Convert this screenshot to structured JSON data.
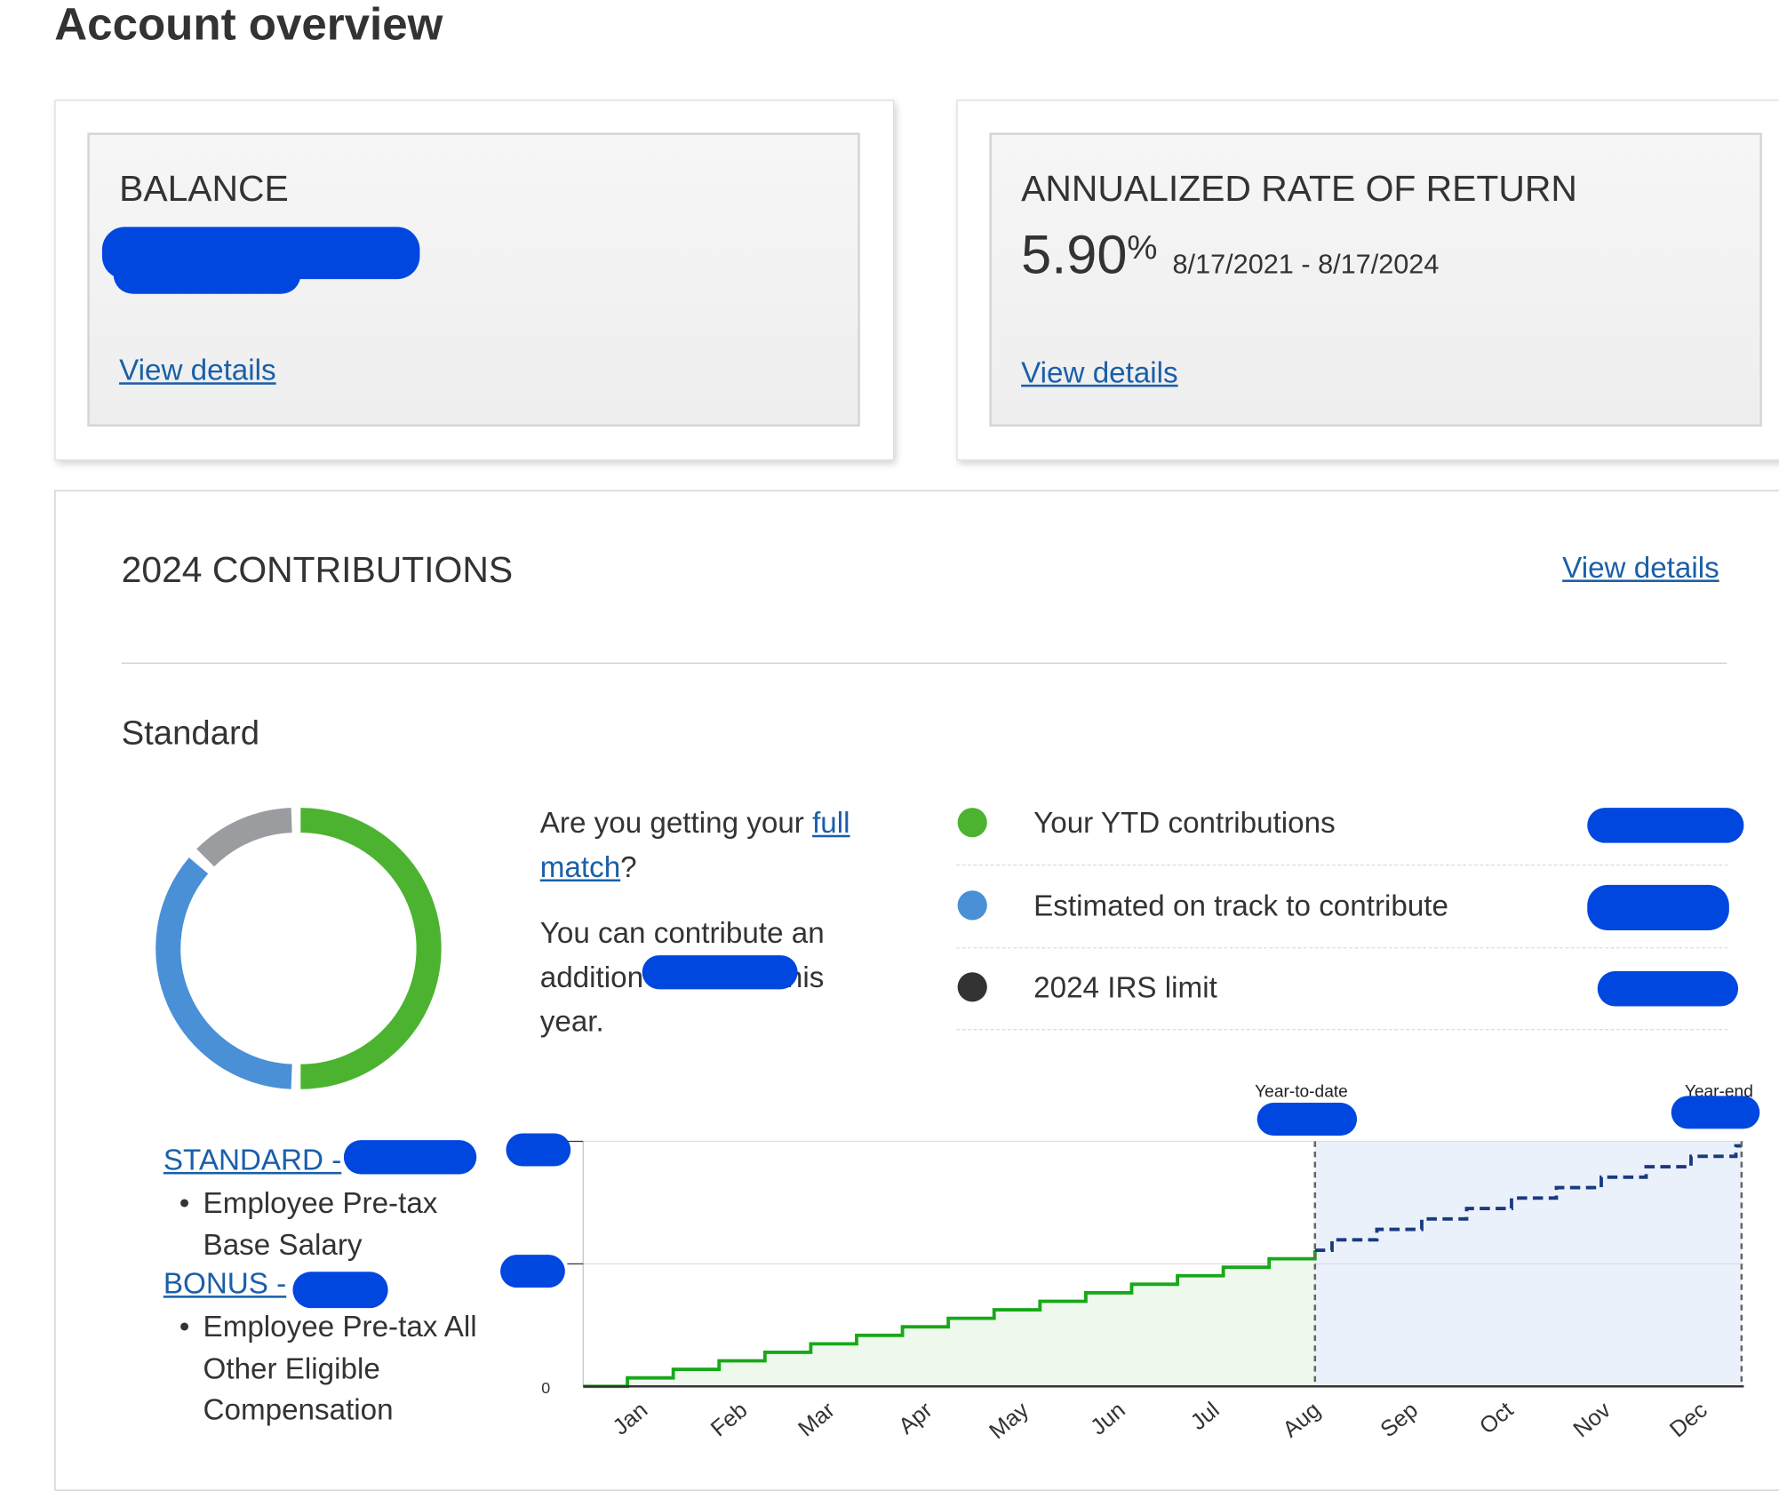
{
  "header": {
    "title": "Account overview"
  },
  "balance_card": {
    "title": "BALANCE",
    "link": "View details"
  },
  "return_card": {
    "title": "ANNUALIZED RATE OF RETURN",
    "rate": "5.90",
    "unit": "%",
    "period": "8/17/2021 - 8/17/2024",
    "link": "View details"
  },
  "contributions": {
    "title": "2024 CONTRIBUTIONS",
    "link": "View details",
    "subtitle": "Standard",
    "match": {
      "prefix": "Are you getting your ",
      "link_1": "full",
      "link_2": "match",
      "suffix": "?"
    },
    "additional": {
      "line_1": "You can contribute an",
      "line_2a": "addition",
      "line_2b": "his",
      "line_3": "year."
    },
    "legend": [
      {
        "label": "Your YTD contributions",
        "color": "#4cb330"
      },
      {
        "label": "Estimated on track to contribute",
        "color": "#4a90d6"
      },
      {
        "label": "2024 IRS limit",
        "color": "#333333"
      }
    ],
    "sources": [
      {
        "link": "STANDARD -",
        "items": [
          "Employee Pre-tax",
          "Base Salary"
        ]
      },
      {
        "link": "BONUS -",
        "items": [
          "Employee Pre-tax All",
          "Other Eligible",
          "Compensation"
        ]
      }
    ],
    "chart": {
      "y_zero": "0",
      "marker_ytd": "Year-to-date",
      "marker_end": "Year-end",
      "months": [
        "Jan",
        "Feb",
        "Mar",
        "Apr",
        "May",
        "Jun",
        "Jul",
        "Aug",
        "Sep",
        "Oct",
        "Nov",
        "Dec"
      ]
    }
  }
}
